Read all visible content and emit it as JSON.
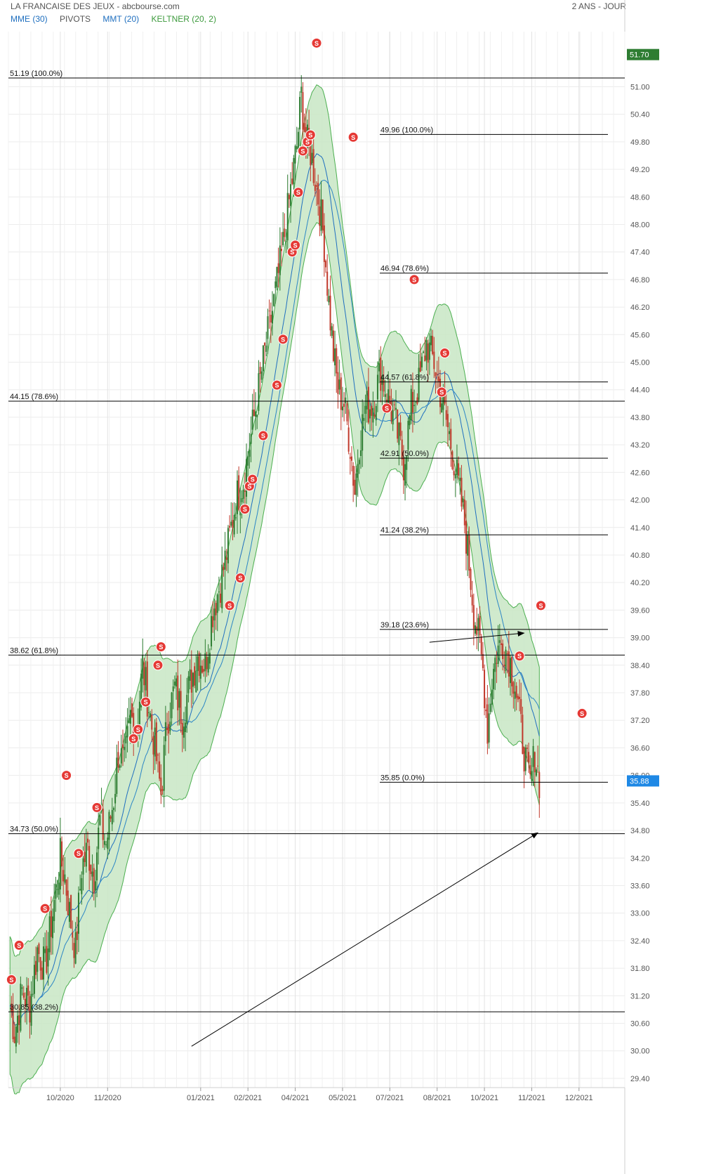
{
  "header": {
    "title": "LA FRANCAISE DES JEUX - abcbourse.com",
    "period": "2 ANS - JOUR"
  },
  "legend": [
    {
      "label": "MME (30)",
      "color": "#1f6fbf"
    },
    {
      "label": "PIVOTS",
      "color": "#555555"
    },
    {
      "label": "MMT (20)",
      "color": "#1f6fbf"
    },
    {
      "label": "KELTNER (20, 2)",
      "color": "#3d9a3d"
    }
  ],
  "colors": {
    "up": "#2e7d32",
    "down": "#c0392b",
    "band_fill": "#c8e6c4",
    "band_line": "#4caf50",
    "ma": "#1f6fbf",
    "signal": "#e53935",
    "price_badge": "#1e88e5",
    "high_badge": "#2e7d32"
  },
  "chart_data": {
    "type": "candlestick",
    "y_range": [
      29.2,
      52.2
    ],
    "y_ticks": [
      "29.40",
      "30.00",
      "30.60",
      "31.20",
      "31.80",
      "32.40",
      "33.00",
      "33.60",
      "34.20",
      "34.80",
      "35.40",
      "36.00",
      "36.60",
      "37.20",
      "37.80",
      "38.40",
      "39.00",
      "39.60",
      "40.20",
      "40.80",
      "41.40",
      "42.00",
      "42.60",
      "43.20",
      "43.80",
      "44.40",
      "45.00",
      "45.60",
      "46.20",
      "46.80",
      "47.40",
      "48.00",
      "48.60",
      "49.20",
      "49.80",
      "50.40",
      "51.00"
    ],
    "x_months": [
      {
        "label": "10/2020",
        "day": 70
      },
      {
        "label": "11/2020",
        "day": 101
      },
      {
        "label": "01/2021",
        "day": 162
      },
      {
        "label": "02/2021",
        "day": 193
      },
      {
        "label": "04/2021",
        "day": 224
      },
      {
        "label": "05/2021",
        "day": 255
      },
      {
        "label": "07/2021",
        "day": 286
      },
      {
        "label": "08/2021",
        "day": 317
      },
      {
        "label": "10/2021",
        "day": 348
      },
      {
        "label": "11/2021",
        "day": 379
      },
      {
        "label": "12/2021",
        "day": 410
      }
    ],
    "x_domain": [
      36,
      440
    ],
    "last_price": "35.88",
    "high_price": "51.70",
    "price_path": [
      [
        37,
        31.0
      ],
      [
        40,
        30.4
      ],
      [
        45,
        31.3
      ],
      [
        50,
        31.0
      ],
      [
        55,
        32.2
      ],
      [
        60,
        31.8
      ],
      [
        65,
        33.0
      ],
      [
        70,
        34.2
      ],
      [
        73,
        33.8
      ],
      [
        76,
        33.0
      ],
      [
        80,
        32.2
      ],
      [
        84,
        34.0
      ],
      [
        88,
        34.4
      ],
      [
        92,
        33.8
      ],
      [
        96,
        35.0
      ],
      [
        100,
        34.5
      ],
      [
        105,
        35.5
      ],
      [
        108,
        36.5
      ],
      [
        112,
        36.2
      ],
      [
        116,
        37.3
      ],
      [
        120,
        37.0
      ],
      [
        124,
        38.4
      ],
      [
        128,
        37.5
      ],
      [
        132,
        36.6
      ],
      [
        136,
        35.6
      ],
      [
        140,
        37.2
      ],
      [
        145,
        37.9
      ],
      [
        150,
        37.3
      ],
      [
        155,
        38.0
      ],
      [
        160,
        38.6
      ],
      [
        165,
        38.4
      ],
      [
        170,
        39.6
      ],
      [
        175,
        40.2
      ],
      [
        180,
        41.0
      ],
      [
        185,
        42.0
      ],
      [
        190,
        42.4
      ],
      [
        195,
        43.4
      ],
      [
        200,
        44.4
      ],
      [
        205,
        45.4
      ],
      [
        210,
        46.3
      ],
      [
        215,
        47.3
      ],
      [
        220,
        48.5
      ],
      [
        225,
        49.7
      ],
      [
        228,
        50.8
      ],
      [
        231,
        49.8
      ],
      [
        234,
        49.6
      ],
      [
        237,
        49.0
      ],
      [
        240,
        48.4
      ],
      [
        243,
        47.6
      ],
      [
        246,
        46.3
      ],
      [
        249,
        45.2
      ],
      [
        252,
        44.4
      ],
      [
        256,
        44.1
      ],
      [
        260,
        43.2
      ],
      [
        263,
        42.2
      ],
      [
        266,
        43.3
      ],
      [
        270,
        44.0
      ],
      [
        275,
        44.1
      ],
      [
        280,
        44.8
      ],
      [
        285,
        44.2
      ],
      [
        290,
        43.6
      ],
      [
        295,
        42.8
      ],
      [
        300,
        44.0
      ],
      [
        305,
        44.5
      ],
      [
        310,
        45.4
      ],
      [
        315,
        45.0
      ],
      [
        320,
        44.2
      ],
      [
        325,
        43.4
      ],
      [
        330,
        42.5
      ],
      [
        335,
        41.5
      ],
      [
        338,
        40.6
      ],
      [
        341,
        39.6
      ],
      [
        344,
        39.0
      ],
      [
        347,
        38.3
      ],
      [
        350,
        37.0
      ],
      [
        353,
        38.1
      ],
      [
        356,
        38.7
      ],
      [
        360,
        38.9
      ],
      [
        364,
        38.6
      ],
      [
        368,
        38.0
      ],
      [
        372,
        37.0
      ],
      [
        375,
        36.3
      ],
      [
        378,
        35.8
      ],
      [
        381,
        36.5
      ],
      [
        384,
        35.9
      ]
    ],
    "fib_levels_left": [
      {
        "label": "51.19 (100.0%)",
        "price": 51.19
      },
      {
        "label": "44.15 (78.6%)",
        "price": 44.15
      },
      {
        "label": "38.62 (61.8%)",
        "price": 38.62
      },
      {
        "label": "34.73 (50.0%)",
        "price": 34.73
      },
      {
        "label": "30.85 (38.2%)",
        "price": 30.85
      }
    ],
    "fib_levels_right": [
      {
        "label": "49.96 (100.0%)",
        "price": 49.96
      },
      {
        "label": "46.94 (78.6%)",
        "price": 46.94
      },
      {
        "label": "44.57 (61.8%)",
        "price": 44.57
      },
      {
        "label": "42.91 (50.0%)",
        "price": 42.91
      },
      {
        "label": "41.24 (38.2%)",
        "price": 41.24
      },
      {
        "label": "39.18 (23.6%)",
        "price": 39.18
      },
      {
        "label": "35.85 (0.0%)",
        "price": 35.85
      }
    ],
    "signals": [
      {
        "day": 38,
        "price": 31.55,
        "label": "S"
      },
      {
        "day": 43,
        "price": 32.3,
        "label": "S"
      },
      {
        "day": 60,
        "price": 33.1,
        "label": "S"
      },
      {
        "day": 74,
        "price": 36.0,
        "label": "S"
      },
      {
        "day": 82,
        "price": 34.3,
        "label": "S"
      },
      {
        "day": 94,
        "price": 35.3,
        "label": "S"
      },
      {
        "day": 118,
        "price": 36.8,
        "label": "S"
      },
      {
        "day": 121,
        "price": 37.0,
        "label": "S"
      },
      {
        "day": 126,
        "price": 37.6,
        "label": "S"
      },
      {
        "day": 134,
        "price": 38.4,
        "label": "S"
      },
      {
        "day": 136,
        "price": 38.8,
        "label": "S"
      },
      {
        "day": 181,
        "price": 39.7,
        "label": "S"
      },
      {
        "day": 188,
        "price": 40.3,
        "label": "S"
      },
      {
        "day": 191,
        "price": 41.8,
        "label": "S"
      },
      {
        "day": 194,
        "price": 42.3,
        "label": "S"
      },
      {
        "day": 196,
        "price": 42.45,
        "label": "S"
      },
      {
        "day": 203,
        "price": 43.4,
        "label": "S"
      },
      {
        "day": 212,
        "price": 44.5,
        "label": "S"
      },
      {
        "day": 216,
        "price": 45.5,
        "label": "S"
      },
      {
        "day": 222,
        "price": 47.4,
        "label": "S"
      },
      {
        "day": 224,
        "price": 47.55,
        "label": "S"
      },
      {
        "day": 226,
        "price": 48.7,
        "label": "S"
      },
      {
        "day": 229,
        "price": 49.6,
        "label": "S"
      },
      {
        "day": 232,
        "price": 49.8,
        "label": "S"
      },
      {
        "day": 234,
        "price": 49.95,
        "label": "S"
      },
      {
        "day": 238,
        "price": 51.95,
        "label": "S"
      },
      {
        "day": 262,
        "price": 49.9,
        "label": "S"
      },
      {
        "day": 284,
        "price": 44.0,
        "label": "S"
      },
      {
        "day": 302,
        "price": 46.8,
        "label": "S"
      },
      {
        "day": 320,
        "price": 44.35,
        "label": "S"
      },
      {
        "day": 322,
        "price": 45.2,
        "label": "S"
      },
      {
        "day": 371,
        "price": 38.6,
        "label": "S"
      },
      {
        "day": 385,
        "price": 39.7,
        "label": "S"
      },
      {
        "day": 412,
        "price": 37.35,
        "label": "S"
      }
    ],
    "arrows": [
      {
        "from": [
          156,
          30.1
        ],
        "to": [
          383,
          34.75
        ]
      },
      {
        "from": [
          312,
          38.9
        ],
        "to": [
          374,
          39.1
        ]
      }
    ]
  }
}
